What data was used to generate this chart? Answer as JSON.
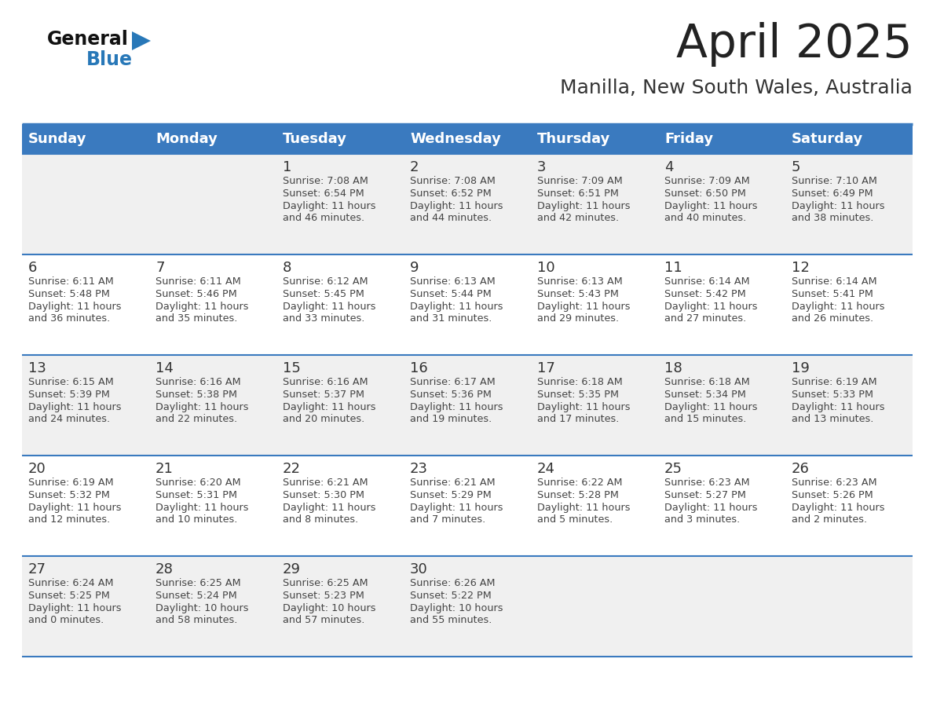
{
  "title": "April 2025",
  "subtitle": "Manilla, New South Wales, Australia",
  "days_of_week": [
    "Sunday",
    "Monday",
    "Tuesday",
    "Wednesday",
    "Thursday",
    "Friday",
    "Saturday"
  ],
  "header_bg": "#3a7abf",
  "header_text": "#ffffff",
  "row_bg_odd": "#f0f0f0",
  "row_bg_even": "#ffffff",
  "border_color": "#3a7abf",
  "day_number_color": "#333333",
  "cell_text_color": "#444444",
  "title_color": "#222222",
  "subtitle_color": "#333333",
  "logo_general_color": "#111111",
  "logo_blue_color": "#2878b8",
  "weeks": [
    [
      {
        "day": "",
        "sunrise": "",
        "sunset": "",
        "daylight": ""
      },
      {
        "day": "",
        "sunrise": "",
        "sunset": "",
        "daylight": ""
      },
      {
        "day": "1",
        "sunrise": "Sunrise: 7:08 AM",
        "sunset": "Sunset: 6:54 PM",
        "daylight": "Daylight: 11 hours\nand 46 minutes."
      },
      {
        "day": "2",
        "sunrise": "Sunrise: 7:08 AM",
        "sunset": "Sunset: 6:52 PM",
        "daylight": "Daylight: 11 hours\nand 44 minutes."
      },
      {
        "day": "3",
        "sunrise": "Sunrise: 7:09 AM",
        "sunset": "Sunset: 6:51 PM",
        "daylight": "Daylight: 11 hours\nand 42 minutes."
      },
      {
        "day": "4",
        "sunrise": "Sunrise: 7:09 AM",
        "sunset": "Sunset: 6:50 PM",
        "daylight": "Daylight: 11 hours\nand 40 minutes."
      },
      {
        "day": "5",
        "sunrise": "Sunrise: 7:10 AM",
        "sunset": "Sunset: 6:49 PM",
        "daylight": "Daylight: 11 hours\nand 38 minutes."
      }
    ],
    [
      {
        "day": "6",
        "sunrise": "Sunrise: 6:11 AM",
        "sunset": "Sunset: 5:48 PM",
        "daylight": "Daylight: 11 hours\nand 36 minutes."
      },
      {
        "day": "7",
        "sunrise": "Sunrise: 6:11 AM",
        "sunset": "Sunset: 5:46 PM",
        "daylight": "Daylight: 11 hours\nand 35 minutes."
      },
      {
        "day": "8",
        "sunrise": "Sunrise: 6:12 AM",
        "sunset": "Sunset: 5:45 PM",
        "daylight": "Daylight: 11 hours\nand 33 minutes."
      },
      {
        "day": "9",
        "sunrise": "Sunrise: 6:13 AM",
        "sunset": "Sunset: 5:44 PM",
        "daylight": "Daylight: 11 hours\nand 31 minutes."
      },
      {
        "day": "10",
        "sunrise": "Sunrise: 6:13 AM",
        "sunset": "Sunset: 5:43 PM",
        "daylight": "Daylight: 11 hours\nand 29 minutes."
      },
      {
        "day": "11",
        "sunrise": "Sunrise: 6:14 AM",
        "sunset": "Sunset: 5:42 PM",
        "daylight": "Daylight: 11 hours\nand 27 minutes."
      },
      {
        "day": "12",
        "sunrise": "Sunrise: 6:14 AM",
        "sunset": "Sunset: 5:41 PM",
        "daylight": "Daylight: 11 hours\nand 26 minutes."
      }
    ],
    [
      {
        "day": "13",
        "sunrise": "Sunrise: 6:15 AM",
        "sunset": "Sunset: 5:39 PM",
        "daylight": "Daylight: 11 hours\nand 24 minutes."
      },
      {
        "day": "14",
        "sunrise": "Sunrise: 6:16 AM",
        "sunset": "Sunset: 5:38 PM",
        "daylight": "Daylight: 11 hours\nand 22 minutes."
      },
      {
        "day": "15",
        "sunrise": "Sunrise: 6:16 AM",
        "sunset": "Sunset: 5:37 PM",
        "daylight": "Daylight: 11 hours\nand 20 minutes."
      },
      {
        "day": "16",
        "sunrise": "Sunrise: 6:17 AM",
        "sunset": "Sunset: 5:36 PM",
        "daylight": "Daylight: 11 hours\nand 19 minutes."
      },
      {
        "day": "17",
        "sunrise": "Sunrise: 6:18 AM",
        "sunset": "Sunset: 5:35 PM",
        "daylight": "Daylight: 11 hours\nand 17 minutes."
      },
      {
        "day": "18",
        "sunrise": "Sunrise: 6:18 AM",
        "sunset": "Sunset: 5:34 PM",
        "daylight": "Daylight: 11 hours\nand 15 minutes."
      },
      {
        "day": "19",
        "sunrise": "Sunrise: 6:19 AM",
        "sunset": "Sunset: 5:33 PM",
        "daylight": "Daylight: 11 hours\nand 13 minutes."
      }
    ],
    [
      {
        "day": "20",
        "sunrise": "Sunrise: 6:19 AM",
        "sunset": "Sunset: 5:32 PM",
        "daylight": "Daylight: 11 hours\nand 12 minutes."
      },
      {
        "day": "21",
        "sunrise": "Sunrise: 6:20 AM",
        "sunset": "Sunset: 5:31 PM",
        "daylight": "Daylight: 11 hours\nand 10 minutes."
      },
      {
        "day": "22",
        "sunrise": "Sunrise: 6:21 AM",
        "sunset": "Sunset: 5:30 PM",
        "daylight": "Daylight: 11 hours\nand 8 minutes."
      },
      {
        "day": "23",
        "sunrise": "Sunrise: 6:21 AM",
        "sunset": "Sunset: 5:29 PM",
        "daylight": "Daylight: 11 hours\nand 7 minutes."
      },
      {
        "day": "24",
        "sunrise": "Sunrise: 6:22 AM",
        "sunset": "Sunset: 5:28 PM",
        "daylight": "Daylight: 11 hours\nand 5 minutes."
      },
      {
        "day": "25",
        "sunrise": "Sunrise: 6:23 AM",
        "sunset": "Sunset: 5:27 PM",
        "daylight": "Daylight: 11 hours\nand 3 minutes."
      },
      {
        "day": "26",
        "sunrise": "Sunrise: 6:23 AM",
        "sunset": "Sunset: 5:26 PM",
        "daylight": "Daylight: 11 hours\nand 2 minutes."
      }
    ],
    [
      {
        "day": "27",
        "sunrise": "Sunrise: 6:24 AM",
        "sunset": "Sunset: 5:25 PM",
        "daylight": "Daylight: 11 hours\nand 0 minutes."
      },
      {
        "day": "28",
        "sunrise": "Sunrise: 6:25 AM",
        "sunset": "Sunset: 5:24 PM",
        "daylight": "Daylight: 10 hours\nand 58 minutes."
      },
      {
        "day": "29",
        "sunrise": "Sunrise: 6:25 AM",
        "sunset": "Sunset: 5:23 PM",
        "daylight": "Daylight: 10 hours\nand 57 minutes."
      },
      {
        "day": "30",
        "sunrise": "Sunrise: 6:26 AM",
        "sunset": "Sunset: 5:22 PM",
        "daylight": "Daylight: 10 hours\nand 55 minutes."
      },
      {
        "day": "",
        "sunrise": "",
        "sunset": "",
        "daylight": ""
      },
      {
        "day": "",
        "sunrise": "",
        "sunset": "",
        "daylight": ""
      },
      {
        "day": "",
        "sunrise": "",
        "sunset": "",
        "daylight": ""
      }
    ]
  ]
}
